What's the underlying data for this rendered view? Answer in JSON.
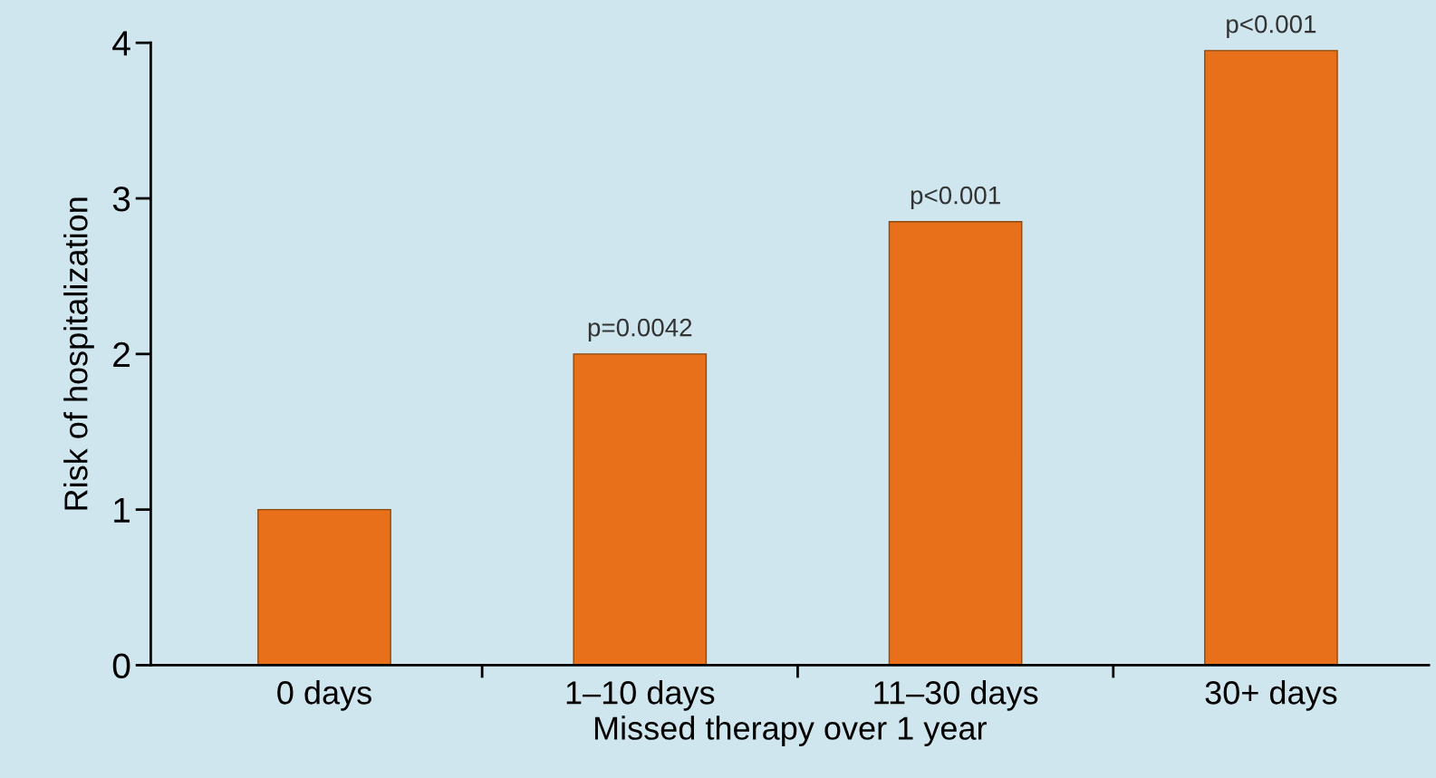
{
  "chart_data": {
    "type": "bar",
    "xlabel": "Missed therapy over 1 year",
    "ylabel": "Risk of hospitalization",
    "categories": [
      "0 days",
      "1–10 days",
      "11–30 days",
      "30+ days"
    ],
    "values": [
      1.0,
      2.0,
      2.85,
      3.95
    ],
    "color": "#e8701a",
    "ylim": [
      0,
      4
    ],
    "yticks": [
      0,
      1,
      2,
      3,
      4
    ],
    "grid": false,
    "legend": false,
    "annotations": [
      {
        "text": "p=0.0042",
        "x": "1–10 days",
        "y": 2.0
      },
      {
        "text": "p<0.001",
        "x": "11–30 days",
        "y": 2.85
      },
      {
        "text": "p<0.001",
        "x": "30+ days",
        "y": 3.95
      }
    ]
  }
}
